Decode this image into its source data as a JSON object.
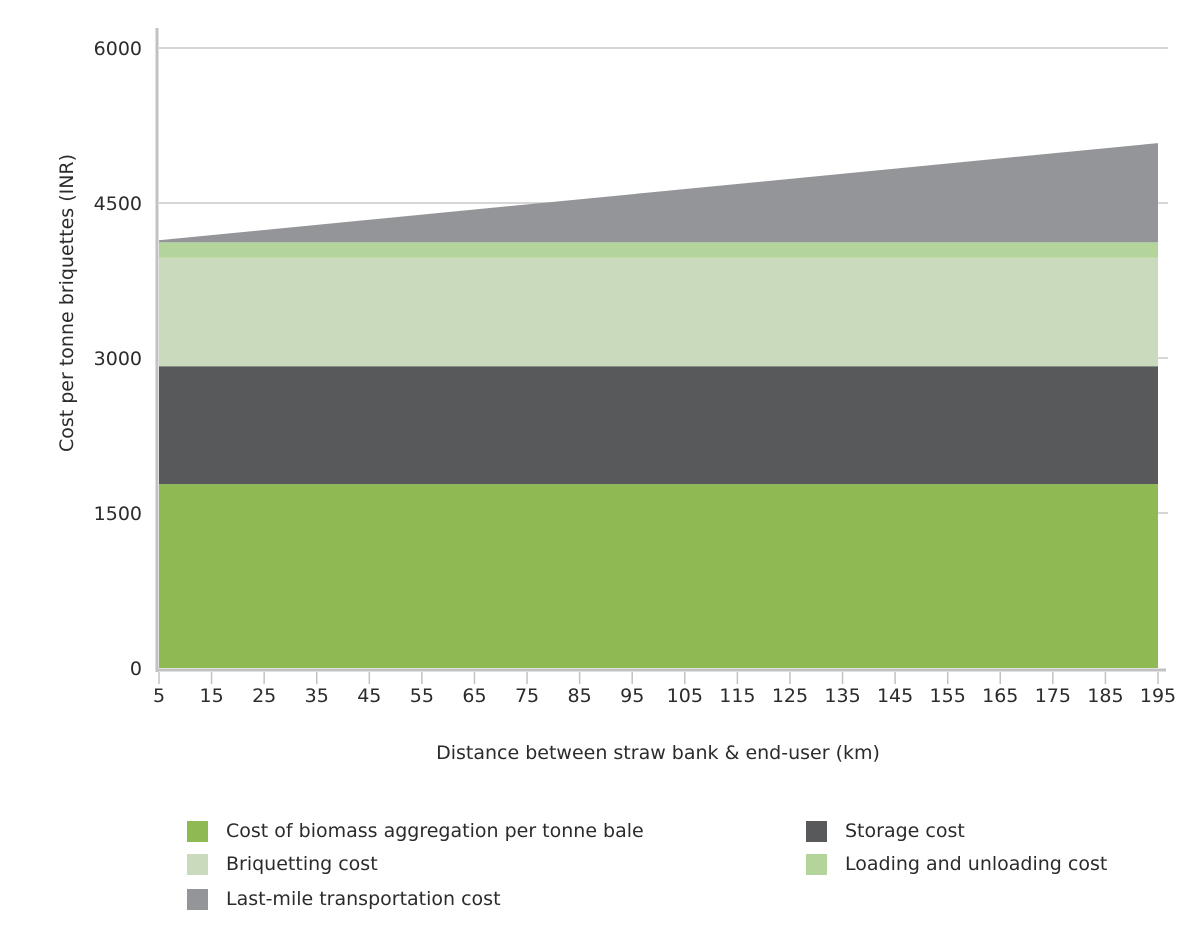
{
  "chart_data": {
    "type": "area",
    "stacked": true,
    "xlabel": "Distance between straw bank & end-user (km)",
    "ylabel": "Cost per tonne briquettes (INR)",
    "xlim": [
      5,
      195
    ],
    "ylim": [
      0,
      6000
    ],
    "x_ticks": [
      5,
      15,
      25,
      35,
      45,
      55,
      65,
      75,
      85,
      95,
      105,
      115,
      125,
      135,
      145,
      155,
      165,
      175,
      185,
      195
    ],
    "y_ticks": [
      0,
      1500,
      3000,
      4500,
      6000
    ],
    "grid": "horizontal",
    "legend_position": "bottom",
    "x": [
      5,
      195
    ],
    "series": [
      {
        "name": "Cost of biomass aggregation per tonne bale",
        "color": "#8fba53",
        "values": [
          1780,
          1780
        ]
      },
      {
        "name": "Storage cost",
        "color": "#58595b",
        "values": [
          1140,
          1140
        ]
      },
      {
        "name": "Briquetting cost",
        "color": "#c9dbbc",
        "values": [
          1050,
          1050
        ]
      },
      {
        "name": "Loading and unloading cost",
        "color": "#b3d49b",
        "values": [
          150,
          150
        ]
      },
      {
        "name": "Last-mile transportation cost",
        "color": "#939598",
        "values": [
          20,
          960
        ]
      }
    ]
  },
  "legend": {
    "items": [
      {
        "label": "Cost of biomass aggregation per tonne bale",
        "color": "#8fba53"
      },
      {
        "label": "Storage cost",
        "color": "#58595b"
      },
      {
        "label": "Briquetting cost",
        "color": "#c9dbbc"
      },
      {
        "label": "Loading and unloading cost",
        "color": "#b3d49b"
      },
      {
        "label": "Last-mile transportation cost",
        "color": "#939598"
      }
    ]
  }
}
